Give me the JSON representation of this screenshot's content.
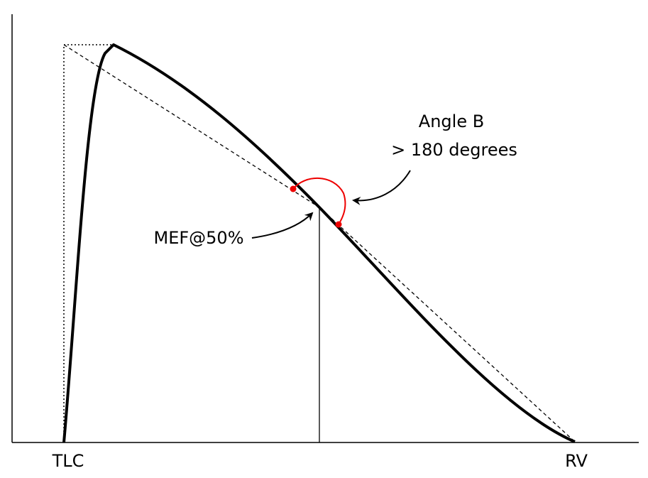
{
  "labels": {
    "tlc": "TLC",
    "rv": "RV",
    "mef": "MEF@50%",
    "angle_title": "Angle B",
    "angle_note": "> 180 degrees"
  }
}
